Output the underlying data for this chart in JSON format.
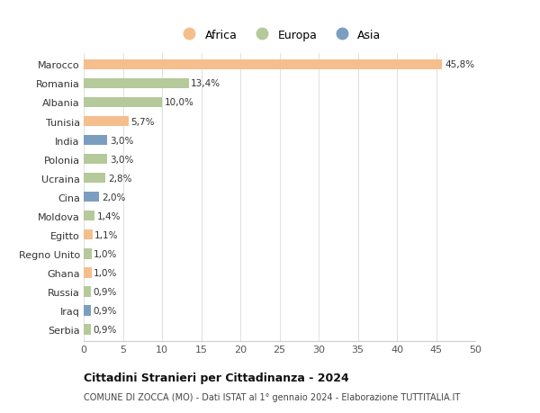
{
  "categories": [
    "Marocco",
    "Romania",
    "Albania",
    "Tunisia",
    "India",
    "Polonia",
    "Ucraina",
    "Cina",
    "Moldova",
    "Egitto",
    "Regno Unito",
    "Ghana",
    "Russia",
    "Iraq",
    "Serbia"
  ],
  "values": [
    45.8,
    13.4,
    10.0,
    5.7,
    3.0,
    3.0,
    2.8,
    2.0,
    1.4,
    1.1,
    1.0,
    1.0,
    0.9,
    0.9,
    0.9
  ],
  "labels": [
    "45,8%",
    "13,4%",
    "10,0%",
    "5,7%",
    "3,0%",
    "3,0%",
    "2,8%",
    "2,0%",
    "1,4%",
    "1,1%",
    "1,0%",
    "1,0%",
    "0,9%",
    "0,9%",
    "0,9%"
  ],
  "continents": [
    "Africa",
    "Europa",
    "Europa",
    "Africa",
    "Asia",
    "Europa",
    "Europa",
    "Asia",
    "Europa",
    "Africa",
    "Europa",
    "Africa",
    "Europa",
    "Asia",
    "Europa"
  ],
  "colors": {
    "Africa": "#F5BE8D",
    "Europa": "#B5C99A",
    "Asia": "#7B9EC0"
  },
  "title": "Cittadini Stranieri per Cittadinanza - 2024",
  "subtitle": "COMUNE DI ZOCCA (MO) - Dati ISTAT al 1° gennaio 2024 - Elaborazione TUTTITALIA.IT",
  "xlim": [
    0,
    50
  ],
  "xticks": [
    0,
    5,
    10,
    15,
    20,
    25,
    30,
    35,
    40,
    45,
    50
  ],
  "background_color": "#ffffff",
  "grid_color": "#e0e0e0",
  "bar_height": 0.55
}
